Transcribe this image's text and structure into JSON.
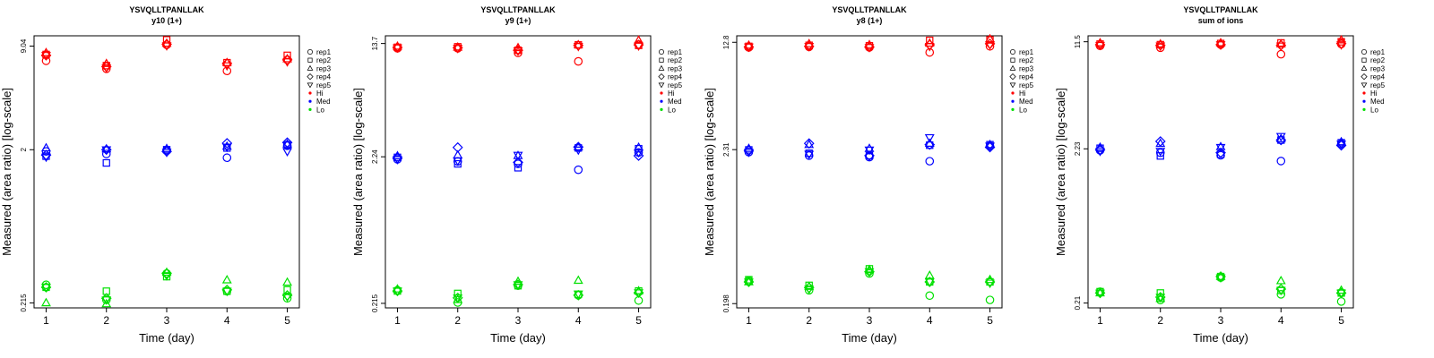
{
  "legend": {
    "replicates": [
      {
        "label": "rep1",
        "shape": "circle"
      },
      {
        "label": "rep2",
        "shape": "square"
      },
      {
        "label": "rep3",
        "shape": "triangle-up"
      },
      {
        "label": "rep4",
        "shape": "diamond"
      },
      {
        "label": "rep5",
        "shape": "triangle-down"
      }
    ],
    "levels": [
      {
        "label": "Hi",
        "color": "#ff0000"
      },
      {
        "label": "Med",
        "color": "#0000ff"
      },
      {
        "label": "Lo",
        "color": "#00e000"
      }
    ]
  },
  "chart_data": [
    {
      "type": "scatter",
      "title": "YSVQLLTPANLLAK",
      "subtitle": "y10 (1+)",
      "xlabel": "Time (day)",
      "ylabel": "Measured (area ratio) [log-scale]",
      "yscale": "log",
      "x_ticks": [
        1,
        2,
        3,
        4,
        5
      ],
      "y_ticks": [
        0.215,
        2,
        9.04
      ],
      "y_tick_labels": [
        "0.215",
        "2",
        "9.04"
      ],
      "ylim": [
        0.2,
        10.5
      ],
      "levels": {
        "Hi": {
          "rep1": [
            7.3,
            6.5,
            9.2,
            6.3,
            7.4
          ],
          "rep2": [
            8.0,
            6.8,
            9.9,
            7.1,
            7.9
          ],
          "rep3": [
            8.2,
            7.0,
            9.4,
            7.1,
            7.5
          ],
          "rep4": [
            7.9,
            6.7,
            9.3,
            7.0,
            7.4
          ],
          "rep5": [
            7.9,
            6.6,
            9.1,
            6.8,
            7.2
          ]
        },
        "Med": {
          "rep1": [
            1.95,
            1.88,
            1.98,
            1.78,
            2.12
          ],
          "rep2": [
            1.82,
            1.65,
            2.0,
            2.05,
            2.15
          ],
          "rep3": [
            2.05,
            2.02,
            2.03,
            2.1,
            2.17
          ],
          "rep4": [
            1.85,
            2.0,
            1.95,
            2.2,
            2.22
          ],
          "rep5": [
            1.8,
            2.0,
            1.93,
            2.08,
            1.95
          ]
        },
        "Lo": {
          "rep1": [
            0.28,
            0.225,
            0.33,
            0.255,
            0.23
          ],
          "rep2": [
            0.27,
            0.255,
            0.315,
            0.255,
            0.26
          ],
          "rep3": [
            0.215,
            0.212,
            0.335,
            0.3,
            0.29
          ],
          "rep4": [
            0.27,
            0.23,
            0.33,
            0.26,
            0.24
          ],
          "rep5": [
            0.27,
            0.225,
            0.32,
            0.255,
            0.235
          ]
        }
      }
    },
    {
      "type": "scatter",
      "title": "YSVQLLTPANLLAK",
      "subtitle": "y9 (1+)",
      "xlabel": "Time (day)",
      "ylabel": "Measured (area ratio) [log-scale]",
      "yscale": "log",
      "x_ticks": [
        1,
        2,
        3,
        4,
        5
      ],
      "y_ticks": [
        0.215,
        2.24,
        13.7
      ],
      "y_tick_labels": [
        "0.215",
        "2.24",
        "13.7"
      ],
      "ylim": [
        0.2,
        15.5
      ],
      "levels": {
        "Hi": {
          "rep1": [
            12.7,
            12.7,
            11.8,
            10.3,
            13.5
          ],
          "rep2": [
            12.9,
            13.0,
            12.3,
            13.4,
            13.3
          ],
          "rep3": [
            13.1,
            12.9,
            12.8,
            13.4,
            14.4
          ],
          "rep4": [
            12.9,
            12.8,
            12.3,
            13.3,
            13.4
          ],
          "rep5": [
            12.8,
            12.7,
            12.2,
            13.1,
            13.2
          ]
        },
        "Med": {
          "rep1": [
            2.15,
            2.08,
            2.0,
            1.82,
            2.4
          ],
          "rep2": [
            2.22,
            2.0,
            1.88,
            2.58,
            2.55
          ],
          "rep3": [
            2.27,
            2.3,
            2.28,
            2.62,
            2.6
          ],
          "rep4": [
            2.2,
            2.6,
            2.05,
            2.62,
            2.28
          ],
          "rep5": [
            2.15,
            2.1,
            2.3,
            2.5,
            2.4
          ]
        },
        "Lo": {
          "rep1": [
            0.265,
            0.218,
            0.285,
            0.245,
            0.225
          ],
          "rep2": [
            0.262,
            0.252,
            0.285,
            0.248,
            0.262
          ],
          "rep3": [
            0.27,
            0.228,
            0.305,
            0.31,
            0.262
          ],
          "rep4": [
            0.262,
            0.235,
            0.29,
            0.245,
            0.255
          ],
          "rep5": [
            0.262,
            0.235,
            0.29,
            0.25,
            0.255
          ]
        }
      }
    },
    {
      "type": "scatter",
      "title": "YSVQLLTPANLLAK",
      "subtitle": "y8 (1+)",
      "xlabel": "Time (day)",
      "ylabel": "Measured (area ratio) [log-scale]",
      "yscale": "log",
      "x_ticks": [
        1,
        2,
        3,
        4,
        5
      ],
      "y_ticks": [
        0.198,
        2.31,
        12.8
      ],
      "y_tick_labels": [
        "0.198",
        "2.31",
        "12.8"
      ],
      "ylim": [
        0.185,
        14.2
      ],
      "levels": {
        "Hi": {
          "rep1": [
            11.8,
            11.9,
            11.8,
            10.9,
            12.0
          ],
          "rep2": [
            12.0,
            12.2,
            12.1,
            13.2,
            13.3
          ],
          "rep3": [
            12.2,
            12.5,
            12.3,
            12.6,
            13.5
          ],
          "rep4": [
            11.9,
            12.0,
            11.9,
            12.3,
            12.5
          ],
          "rep5": [
            11.9,
            12.0,
            11.8,
            12.0,
            12.3
          ]
        },
        "Med": {
          "rep1": [
            2.22,
            2.1,
            2.05,
            1.92,
            2.45
          ],
          "rep2": [
            2.3,
            2.18,
            2.1,
            2.48,
            2.5
          ],
          "rep3": [
            2.35,
            2.5,
            2.35,
            2.55,
            2.5
          ],
          "rep4": [
            2.28,
            2.55,
            2.1,
            2.5,
            2.4
          ],
          "rep5": [
            2.22,
            2.15,
            2.3,
            2.8,
            2.45
          ]
        },
        "Lo": {
          "rep1": [
            0.285,
            0.245,
            0.32,
            0.225,
            0.21
          ],
          "rep2": [
            0.29,
            0.265,
            0.345,
            0.28,
            0.28
          ],
          "rep3": [
            0.28,
            0.26,
            0.34,
            0.31,
            0.29
          ],
          "rep4": [
            0.28,
            0.255,
            0.33,
            0.28,
            0.28
          ],
          "rep5": [
            0.28,
            0.25,
            0.33,
            0.28,
            0.275
          ]
        }
      }
    },
    {
      "type": "scatter",
      "title": "YSVQLLTPANLLAK",
      "subtitle": "sum of ions",
      "xlabel": "Time (day)",
      "ylabel": "Measured (area ratio) [log-scale]",
      "yscale": "log",
      "x_ticks": [
        1,
        2,
        3,
        4,
        5
      ],
      "y_ticks": [
        0.21,
        2.23,
        11.5
      ],
      "y_tick_labels": [
        "0.21",
        "2.23",
        "11.5"
      ],
      "ylim": [
        0.195,
        12.6
      ],
      "levels": {
        "Hi": {
          "rep1": [
            10.8,
            10.5,
            11.0,
            9.5,
            11.1
          ],
          "rep2": [
            11.1,
            11.0,
            11.2,
            11.3,
            11.5
          ],
          "rep3": [
            11.3,
            11.1,
            11.3,
            11.1,
            11.8
          ],
          "rep4": [
            11.0,
            10.9,
            11.0,
            10.9,
            11.2
          ],
          "rep5": [
            10.9,
            10.8,
            11.0,
            10.8,
            11.0
          ]
        },
        "Med": {
          "rep1": [
            2.18,
            2.1,
            2.02,
            1.85,
            2.4
          ],
          "rep2": [
            2.25,
            2.0,
            2.05,
            2.55,
            2.45
          ],
          "rep3": [
            2.28,
            2.42,
            2.3,
            2.6,
            2.48
          ],
          "rep4": [
            2.2,
            2.5,
            2.1,
            2.55,
            2.35
          ],
          "rep5": [
            2.15,
            2.15,
            2.28,
            2.7,
            2.4
          ]
        },
        "Lo": {
          "rep1": [
            0.25,
            0.22,
            0.31,
            0.24,
            0.215
          ],
          "rep2": [
            0.25,
            0.245,
            0.315,
            0.255,
            0.245
          ],
          "rep3": [
            0.245,
            0.225,
            0.315,
            0.295,
            0.255
          ],
          "rep4": [
            0.245,
            0.23,
            0.315,
            0.26,
            0.245
          ],
          "rep5": [
            0.245,
            0.23,
            0.31,
            0.255,
            0.245
          ]
        }
      }
    }
  ]
}
